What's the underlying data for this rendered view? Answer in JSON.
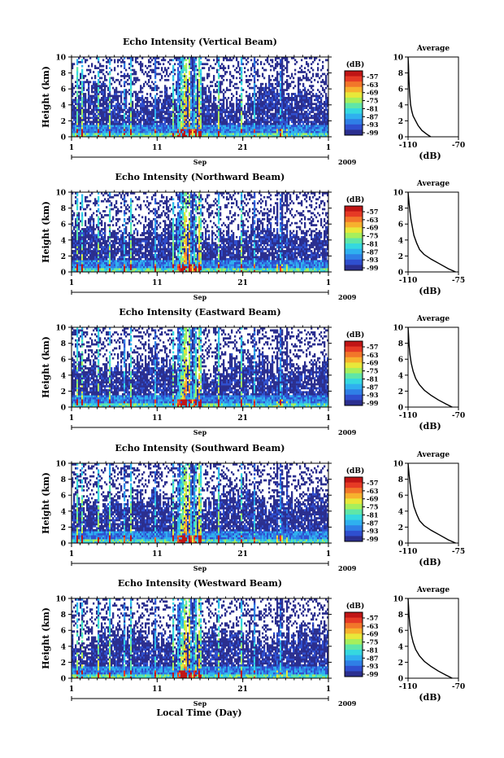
{
  "figure": {
    "xlabel": "Local Time (Day)",
    "year": "2009",
    "month": "Sep"
  },
  "colorbar": {
    "unit": "(dB)",
    "ticks": [
      "-57",
      "-63",
      "-69",
      "-75",
      "-81",
      "-87",
      "-93",
      "-99"
    ],
    "colors": [
      "#ffffff",
      "#2b2f8f",
      "#2f4fcf",
      "#2f7fe6",
      "#2fb0ef",
      "#35d8e0",
      "#5fe6a8",
      "#a6ef5c",
      "#e8e83a",
      "#f7b12e",
      "#f2762a",
      "#e63a25",
      "#c01515"
    ]
  },
  "chart_data": [
    {
      "type": "heatmap",
      "title": "Echo Intensity (Vertical Beam)",
      "ylabel": "Height (km)",
      "ylim": [
        0,
        10
      ],
      "yticks": [
        "0",
        "2",
        "4",
        "6",
        "8",
        "10"
      ],
      "xticks": [
        "1",
        "11",
        "21",
        "1"
      ],
      "xlim": [
        1,
        31
      ],
      "clim": [
        -99,
        -57
      ],
      "avg": {
        "title": "Average",
        "xlabel": "(dB)",
        "xlim": [
          -110,
          -70
        ],
        "xticks": [
          "-110",
          "-70"
        ],
        "yticks": [
          "0",
          "2",
          "4",
          "6",
          "8",
          "10"
        ],
        "profile": [
          [
            -92,
            0
          ],
          [
            -95,
            0.3
          ],
          [
            -99,
            0.8
          ],
          [
            -102,
            1.4
          ],
          [
            -104,
            2.0
          ],
          [
            -106,
            2.6
          ],
          [
            -107,
            3.2
          ],
          [
            -108,
            4.0
          ],
          [
            -108.5,
            5.0
          ],
          [
            -109,
            6.0
          ],
          [
            -109.3,
            7.0
          ],
          [
            -109.5,
            8.0
          ],
          [
            -109.7,
            9.0
          ],
          [
            -110,
            10.0
          ]
        ]
      }
    },
    {
      "type": "heatmap",
      "title": "Echo Intensity (Northward Beam)",
      "ylabel": "Height (km)",
      "ylim": [
        0,
        10
      ],
      "yticks": [
        "0",
        "2",
        "4",
        "6",
        "8",
        "10"
      ],
      "xticks": [
        "1",
        "11",
        "21",
        "1"
      ],
      "xlim": [
        1,
        31
      ],
      "clim": [
        -99,
        -57
      ],
      "avg": {
        "title": "Average",
        "xlabel": "(dB)",
        "xlim": [
          -110,
          -75
        ],
        "xticks": [
          "-110",
          "-75"
        ],
        "yticks": [
          "0",
          "2",
          "4",
          "6",
          "8",
          "10"
        ],
        "profile": [
          [
            -77,
            0
          ],
          [
            -82,
            0.4
          ],
          [
            -88,
            1.0
          ],
          [
            -94,
            1.6
          ],
          [
            -99,
            2.2
          ],
          [
            -102,
            2.8
          ],
          [
            -104,
            3.6
          ],
          [
            -106,
            4.6
          ],
          [
            -107,
            5.6
          ],
          [
            -108,
            6.6
          ],
          [
            -108.7,
            7.6
          ],
          [
            -109.3,
            8.6
          ],
          [
            -110,
            10.0
          ]
        ]
      }
    },
    {
      "type": "heatmap",
      "title": "Echo Intensity (Eastward Beam)",
      "ylabel": "Height (km)",
      "ylim": [
        0,
        10
      ],
      "yticks": [
        "0",
        "2",
        "4",
        "6",
        "8",
        "10"
      ],
      "xticks": [
        "1",
        "11",
        "21",
        "1"
      ],
      "xlim": [
        1,
        31
      ],
      "clim": [
        -99,
        -57
      ],
      "avg": {
        "title": "Average",
        "xlabel": "(dB)",
        "xlim": [
          -110,
          -70
        ],
        "xticks": [
          "-110",
          "-70"
        ],
        "yticks": [
          "0",
          "2",
          "4",
          "6",
          "8",
          "10"
        ],
        "profile": [
          [
            -75,
            0
          ],
          [
            -80,
            0.4
          ],
          [
            -86,
            0.9
          ],
          [
            -92,
            1.5
          ],
          [
            -97,
            2.1
          ],
          [
            -101,
            2.8
          ],
          [
            -104,
            3.6
          ],
          [
            -106,
            4.5
          ],
          [
            -107.5,
            5.5
          ],
          [
            -108.5,
            6.6
          ],
          [
            -109.2,
            7.8
          ],
          [
            -109.6,
            9.0
          ],
          [
            -110,
            10.0
          ]
        ]
      }
    },
    {
      "type": "heatmap",
      "title": "Echo Intensity (Southward Beam)",
      "ylabel": "Height (km)",
      "ylim": [
        0,
        10
      ],
      "yticks": [
        "0",
        "2",
        "4",
        "6",
        "8",
        "10"
      ],
      "xticks": [
        "1",
        "11",
        "21",
        "1"
      ],
      "xlim": [
        1,
        31
      ],
      "clim": [
        -99,
        -57
      ],
      "avg": {
        "title": "Average",
        "xlabel": "(dB)",
        "xlim": [
          -110,
          -75
        ],
        "xticks": [
          "-110",
          "-75"
        ],
        "yticks": [
          "0",
          "2",
          "4",
          "6",
          "8",
          "10"
        ],
        "profile": [
          [
            -77,
            0
          ],
          [
            -82,
            0.4
          ],
          [
            -88,
            1.0
          ],
          [
            -94,
            1.6
          ],
          [
            -99,
            2.2
          ],
          [
            -102,
            2.8
          ],
          [
            -104,
            3.6
          ],
          [
            -106,
            4.6
          ],
          [
            -107,
            5.6
          ],
          [
            -108,
            6.6
          ],
          [
            -108.7,
            7.6
          ],
          [
            -109.3,
            8.6
          ],
          [
            -110,
            10.0
          ]
        ]
      }
    },
    {
      "type": "heatmap",
      "title": "Echo Intensity (Westward Beam)",
      "ylabel": "Height (km)",
      "ylim": [
        0,
        10
      ],
      "yticks": [
        "0",
        "2",
        "4",
        "6",
        "8",
        "10"
      ],
      "xticks": [
        "1",
        "11",
        "21",
        "1"
      ],
      "xlim": [
        1,
        31
      ],
      "clim": [
        -99,
        -57
      ],
      "avg": {
        "title": "Average",
        "xlabel": "(dB)",
        "xlim": [
          -110,
          -70
        ],
        "xticks": [
          "-110",
          "-70"
        ],
        "yticks": [
          "0",
          "2",
          "4",
          "6",
          "8",
          "10"
        ],
        "profile": [
          [
            -75,
            0
          ],
          [
            -80,
            0.4
          ],
          [
            -86,
            0.9
          ],
          [
            -92,
            1.5
          ],
          [
            -97,
            2.1
          ],
          [
            -101,
            2.8
          ],
          [
            -104,
            3.6
          ],
          [
            -106,
            4.5
          ],
          [
            -107.5,
            5.5
          ],
          [
            -108.5,
            6.6
          ],
          [
            -109.2,
            7.8
          ],
          [
            -109.6,
            9.0
          ],
          [
            -110,
            10.0
          ]
        ]
      }
    }
  ]
}
